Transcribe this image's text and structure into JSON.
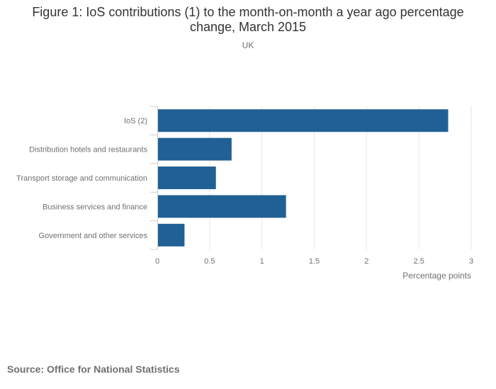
{
  "header": {
    "title": "Figure 1: IoS contributions (1) to the month-on-month a year ago percentage change, March 2015",
    "subtitle": "UK"
  },
  "footer": {
    "source": "Source: Office for National Statistics"
  },
  "colors": {
    "bar": "#206095",
    "grid": "#e6e6e6",
    "axis": "#cccccc",
    "text": "#707070"
  },
  "chart_data": {
    "type": "bar",
    "orientation": "horizontal",
    "categories": [
      "IoS (2)",
      "Distribution hotels and restaurants",
      "Transport storage and communication",
      "Business services and finance",
      "Government and other services"
    ],
    "values": [
      2.78,
      0.71,
      0.56,
      1.23,
      0.26
    ],
    "xlabel": "Percentage points",
    "xlim": [
      0,
      3
    ],
    "xticks": [
      0,
      0.5,
      1,
      1.5,
      2,
      2.5,
      3
    ],
    "xtick_labels": [
      "0",
      "0.5",
      "1",
      "1.5",
      "2",
      "2.5",
      "3"
    ],
    "grid": true,
    "legend": "none"
  }
}
